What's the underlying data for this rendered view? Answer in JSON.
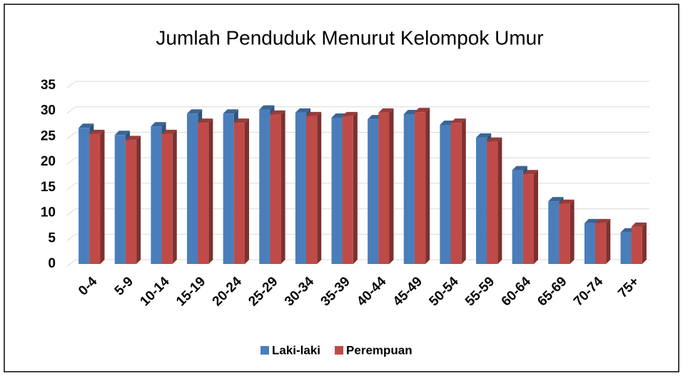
{
  "chart_data": {
    "type": "bar",
    "title": "Jumlah Penduduk Menurut Kelompok Umur",
    "categories": [
      "0-4",
      "5-9",
      "10-14",
      "15-19",
      "20-24",
      "25-29",
      "30-34",
      "35-39",
      "40-44",
      "45-49",
      "50-54",
      "55-59",
      "60-64",
      "65-69",
      "70-74",
      "75+"
    ],
    "series": [
      {
        "name": "Laki-laki",
        "color": "#4a7ebb",
        "values": [
          26.7,
          25.3,
          27.0,
          29.5,
          29.5,
          30.3,
          29.7,
          28.7,
          28.4,
          29.4,
          27.3,
          24.8,
          18.4,
          12.3,
          8.0,
          6.2
        ]
      },
      {
        "name": "Perempuan",
        "color": "#be4b48",
        "values": [
          25.5,
          24.3,
          25.5,
          27.7,
          27.7,
          29.3,
          29.0,
          29.0,
          29.7,
          29.8,
          27.7,
          24.0,
          17.6,
          11.8,
          8.0,
          7.3
        ]
      }
    ],
    "ylim": [
      0,
      35
    ],
    "yticks": [
      0,
      5,
      10,
      15,
      20,
      25,
      30,
      35
    ],
    "grid": true,
    "legend": "bottom"
  }
}
